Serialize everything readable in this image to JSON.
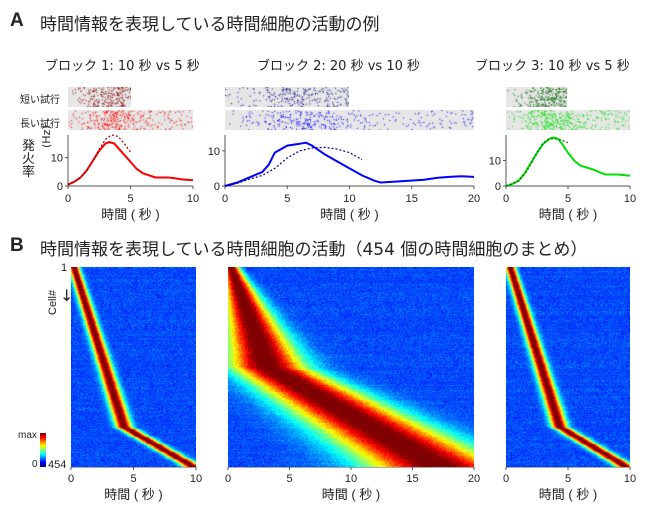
{
  "section_a": {
    "letter": "A",
    "title": "時間情報を表現している時間細胞の活動の例",
    "row_labels": {
      "short": "短い試行",
      "long": "長い試行"
    },
    "ylabel_line1": "発火率",
    "ylabel_line2": "(Hz)"
  },
  "section_b": {
    "letter": "B",
    "title": "時間情報を表現している時間細胞の活動（454 個の時間細胞のまとめ）",
    "cell_axis_label": "Cell#",
    "cell_first": "1",
    "cell_last": "454",
    "colorbar_max": "max",
    "colorbar_min": "0"
  },
  "xlabel": "時間 ( 秒 )",
  "colors": {
    "block1": "#ff0000",
    "block1_short": "#8b0000",
    "block2": "#0000ff",
    "block2_short": "#00008b",
    "block3": "#00e000",
    "block3_short": "#006400",
    "raster_bg": "#e6e6e6"
  },
  "chart_data": [
    {
      "type": "line",
      "title": "ブロック 1:  10 秒 vs 5 秒",
      "xlabel": "時間 ( 秒 )",
      "ylabel": "発火率 (Hz)",
      "xlim": [
        0,
        10
      ],
      "ylim": [
        0,
        18
      ],
      "xticks": [
        "0",
        "5",
        "10"
      ],
      "yticks": [
        "0",
        "10"
      ],
      "series": [
        {
          "style": "solid",
          "x": [
            0,
            0.5,
            1,
            1.5,
            2,
            2.5,
            3,
            3.3,
            3.7,
            4,
            4.5,
            5,
            5.5,
            6,
            7,
            8,
            8.5,
            9,
            10
          ],
          "y": [
            0.5,
            1.5,
            3,
            5.5,
            9,
            12.5,
            15,
            15.5,
            15,
            13.5,
            11,
            8.5,
            6,
            4.5,
            3,
            3,
            2.8,
            2.4,
            2
          ]
        },
        {
          "style": "dashed",
          "x": [
            0,
            0.5,
            1,
            1.5,
            2,
            2.5,
            3,
            3.5,
            4,
            4.5,
            5
          ],
          "y": [
            0.5,
            1.5,
            3,
            5.5,
            9,
            13,
            16.5,
            18,
            17.5,
            15,
            12
          ]
        }
      ],
      "raster_short_end": 5,
      "raster_long_end": 10
    },
    {
      "type": "line",
      "title": "ブロック 2:  20 秒 vs 10 秒",
      "xlabel": "時間 ( 秒 )",
      "xlim": [
        0,
        20
      ],
      "ylim": [
        0,
        14.5
      ],
      "xticks": [
        "0",
        "5",
        "10",
        "15",
        "20"
      ],
      "yticks": [
        "0",
        "10"
      ],
      "series": [
        {
          "style": "solid",
          "x": [
            0,
            1,
            2,
            3,
            3.5,
            4,
            5,
            6,
            6.5,
            7,
            8,
            9,
            10,
            11,
            12,
            12.5,
            14,
            16,
            17,
            18,
            19,
            20
          ],
          "y": [
            0,
            1,
            2.5,
            4,
            6,
            9.5,
            11.5,
            12,
            12.3,
            11.5,
            9,
            7,
            5,
            3,
            1.5,
            1,
            1.3,
            1.8,
            2.3,
            2.6,
            2.8,
            2.6
          ]
        },
        {
          "style": "dashed",
          "x": [
            0,
            1,
            2,
            3,
            4,
            5,
            6,
            7,
            8,
            9,
            10,
            11
          ],
          "y": [
            0,
            0.8,
            2,
            3,
            5,
            8,
            10,
            10.8,
            11,
            10.5,
            9.5,
            7.5
          ]
        }
      ],
      "raster_short_end": 10,
      "raster_long_end": 20
    },
    {
      "type": "line",
      "title": "ブロック 3:  10 秒 vs 5 秒",
      "xlabel": "時間 ( 秒 )",
      "xlim": [
        0,
        10
      ],
      "ylim": [
        0,
        20
      ],
      "xticks": [
        "0",
        "5",
        "10"
      ],
      "yticks": [
        "0",
        "10"
      ],
      "series": [
        {
          "style": "solid",
          "x": [
            0,
            0.5,
            1,
            1.5,
            2,
            2.5,
            3,
            3.5,
            3.8,
            4.2,
            4.6,
            5,
            5.5,
            6,
            7,
            8,
            9,
            10
          ],
          "y": [
            0,
            0.8,
            2,
            5,
            9,
            13,
            16.5,
            18.5,
            19,
            18.5,
            16,
            13,
            10,
            8,
            6.5,
            4.5,
            4.5,
            4
          ]
        },
        {
          "style": "dashed",
          "x": [
            0,
            0.5,
            1,
            1.5,
            2,
            2.5,
            3,
            3.5,
            4,
            4.5,
            5
          ],
          "y": [
            0,
            0.8,
            2,
            4.5,
            8.5,
            13,
            17,
            18.5,
            18.5,
            18,
            17
          ]
        }
      ],
      "raster_short_end": 5,
      "raster_long_end": 10
    },
    {
      "type": "heatmap",
      "xlabel": "時間 ( 秒 )",
      "ylabel": "Cell#",
      "xlim": [
        0,
        10
      ],
      "xticks": [
        "0",
        "5",
        "10"
      ],
      "ylim": [
        1,
        454
      ],
      "colormap": "jet",
      "colorbar": [
        "0",
        "max"
      ]
    },
    {
      "type": "heatmap",
      "xlabel": "時間 ( 秒 )",
      "xlim": [
        0,
        20
      ],
      "xticks": [
        "0",
        "5",
        "10",
        "15",
        "20"
      ],
      "ylim": [
        1,
        454
      ],
      "colormap": "jet"
    },
    {
      "type": "heatmap",
      "xlabel": "時間 ( 秒 )",
      "xlim": [
        0,
        10
      ],
      "xticks": [
        "0",
        "5",
        "10"
      ],
      "ylim": [
        1,
        454
      ],
      "colormap": "jet"
    }
  ]
}
